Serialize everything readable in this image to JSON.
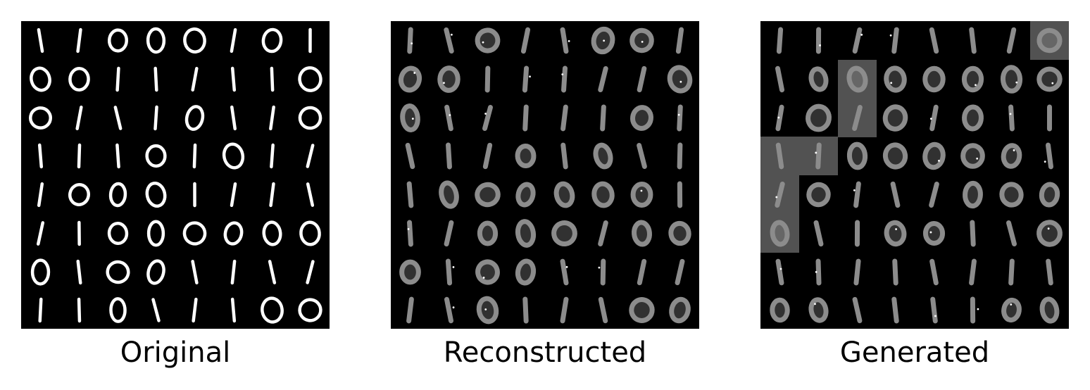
{
  "panels": [
    {
      "caption": "Original",
      "rows": [
        "1/000101",
        "00111110",
        "01110110",
        "11101011",
        "10001111",
        "11000000",
        "01001111",
        "11011100"
      ],
      "shades": [
        "XXXXXXXX",
        "XXXXXXXX",
        "XXXXXXXX",
        "XXXXXXXX",
        "XXXXXXXX",
        "XXXXXXXX",
        "XXXXXXXX",
        "XXXXXXXX"
      ]
    },
    {
      "caption": "Reconstructed",
      "rows": [
        "11011001",
        "00111110",
        "01111101",
        "11101011",
        "10000001",
        "11000100",
        "01001111",
        "11011100"
      ],
      "shades": [
        "........",
        "........",
        "........",
        "........",
        "........",
        "........",
        "........",
        "........"
      ]
    },
    {
      "caption": "Generated",
      "rows": [
        "11111110",
        "10000000",
        "10101011",
        "11000001",
        "10111000",
        "01100110",
        "11111111",
        "00111100"
      ],
      "shades": [
        ".......X",
        "..X.....",
        "..X.....",
        "XX......",
        "X.......",
        "X.......",
        "........",
        "........"
      ]
    }
  ],
  "colors": {
    "background": "#000000",
    "stroke": "#ffffff",
    "blur_stroke": "#8c8c8c",
    "patch": "#6e6e6e"
  }
}
